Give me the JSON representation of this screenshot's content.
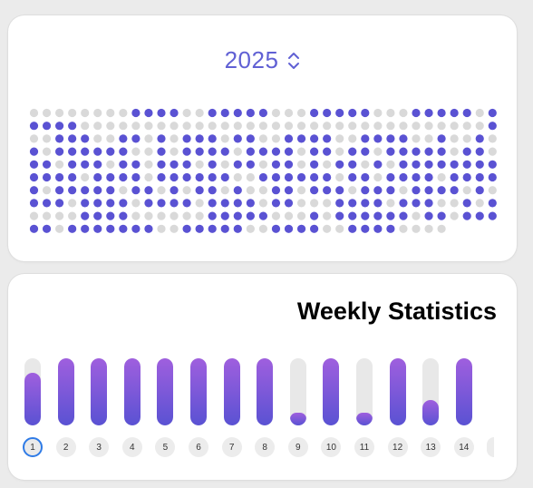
{
  "year_card": {
    "year": "2025",
    "chevron_icon": "chevron-up-down-icon",
    "active_color": "#5a52d3",
    "inactive_color": "#d9d9d9",
    "columns": 37,
    "rows": 10,
    "pattern": [
      "0000000011110011111000111110001111101",
      "1111000000000000000000000000000000001",
      "0011100110101110110011110011110010010",
      "1011111100101111011110110110111110110",
      "1101110110111010110110101101011111111",
      "1111011110111111001111110110111101111",
      "1011111011010110100110111011101111010",
      "1110111101111011110110001111011100101",
      "0000111100000011111000101111110110111",
      "1101111111001111100111100111100000000"
    ]
  },
  "weekly": {
    "title": "Weekly Statistics",
    "days": [
      "1",
      "2",
      "3",
      "4",
      "5",
      "6",
      "7",
      "8",
      "9",
      "10",
      "11",
      "12",
      "13",
      "14"
    ],
    "fill_fraction": [
      0.78,
      1.0,
      1.0,
      1.0,
      1.0,
      1.0,
      1.0,
      1.0,
      0.19,
      1.0,
      0.19,
      1.0,
      0.38,
      1.0
    ],
    "selected_day": "1"
  }
}
